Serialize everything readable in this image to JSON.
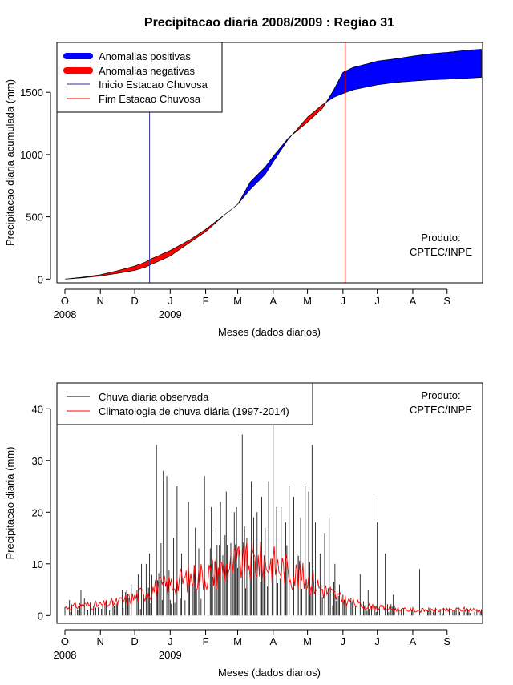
{
  "title": "Precipitacao diaria 2008/2009 : Regiao 31",
  "colors": {
    "positive": "#0000ff",
    "negative": "#ff0000",
    "observed": "#000000",
    "climatology": "#ff0000",
    "onset": "#3030a0",
    "end": "#ff0000"
  },
  "chart_data": [
    {
      "type": "area",
      "name": "accumulated",
      "xlabel": "Meses (dados diarios)",
      "ylabel": "Precipitacao diaria acumulada (mm)",
      "xlim_days": [
        -7,
        365
      ],
      "ylim": [
        -30,
        1900
      ],
      "yticks": [
        0,
        500,
        1000,
        1500
      ],
      "month_labels": [
        "O",
        "N",
        "D",
        "J",
        "F",
        "M",
        "A",
        "M",
        "J",
        "J",
        "A",
        "S"
      ],
      "month_days": [
        0,
        31,
        61,
        92,
        123,
        151,
        182,
        212,
        243,
        273,
        304,
        334
      ],
      "year_labels": [
        {
          "day": 0,
          "label": "2008"
        },
        {
          "day": 92,
          "label": "2009"
        }
      ],
      "onset_day": 74,
      "end_day": 245,
      "observed_curve": {
        "day": [
          0,
          15,
          31,
          45,
          61,
          70,
          76,
          92,
          110,
          123,
          140,
          151,
          162,
          175,
          182,
          195,
          212,
          225,
          235,
          243,
          252,
          265,
          273,
          290,
          304,
          320,
          334,
          355,
          364
        ],
        "mm": [
          0,
          10,
          25,
          45,
          70,
          95,
          120,
          185,
          300,
          380,
          520,
          600,
          780,
          900,
          985,
          1130,
          1260,
          1370,
          1520,
          1660,
          1700,
          1730,
          1750,
          1770,
          1790,
          1810,
          1820,
          1840,
          1845
        ]
      },
      "climatology_curve": {
        "day": [
          0,
          15,
          31,
          45,
          61,
          70,
          76,
          92,
          110,
          123,
          140,
          151,
          162,
          175,
          182,
          195,
          212,
          225,
          235,
          243,
          252,
          265,
          273,
          290,
          304,
          320,
          334,
          355,
          364
        ],
        "mm": [
          0,
          15,
          35,
          65,
          105,
          135,
          165,
          230,
          320,
          400,
          520,
          600,
          720,
          840,
          940,
          1120,
          1300,
          1400,
          1460,
          1490,
          1520,
          1545,
          1560,
          1580,
          1590,
          1600,
          1605,
          1615,
          1620
        ]
      },
      "legend": [
        "Anomalias positivas",
        "Anomalias negativas",
        "Inicio Estacao Chuvosa",
        "Fim Estacao Chuvosa"
      ],
      "annotation": [
        "Produto:",
        "CPTEC/INPE"
      ]
    },
    {
      "type": "bar",
      "name": "daily",
      "xlabel": "Meses (dados diarios)",
      "ylabel": "Precipitacao diaria (mm)",
      "xlim_days": [
        -7,
        365
      ],
      "ylim": [
        -1.5,
        45
      ],
      "yticks": [
        0,
        10,
        20,
        30,
        40
      ],
      "month_labels": [
        "O",
        "N",
        "D",
        "J",
        "F",
        "M",
        "A",
        "M",
        "J",
        "J",
        "A",
        "S"
      ],
      "month_days": [
        0,
        31,
        61,
        92,
        123,
        151,
        182,
        212,
        243,
        273,
        304,
        334
      ],
      "year_labels": [
        {
          "day": 0,
          "label": "2008"
        },
        {
          "day": 92,
          "label": "2009"
        }
      ],
      "observed_peaks": [
        {
          "day": 4,
          "mm": 3
        },
        {
          "day": 14,
          "mm": 5
        },
        {
          "day": 50,
          "mm": 5
        },
        {
          "day": 58,
          "mm": 6
        },
        {
          "day": 64,
          "mm": 8
        },
        {
          "day": 67,
          "mm": 10
        },
        {
          "day": 71,
          "mm": 10
        },
        {
          "day": 74,
          "mm": 12
        },
        {
          "day": 80,
          "mm": 33
        },
        {
          "day": 84,
          "mm": 14
        },
        {
          "day": 86,
          "mm": 28
        },
        {
          "day": 89,
          "mm": 27
        },
        {
          "day": 95,
          "mm": 15
        },
        {
          "day": 98,
          "mm": 25
        },
        {
          "day": 102,
          "mm": 12
        },
        {
          "day": 108,
          "mm": 22
        },
        {
          "day": 114,
          "mm": 17
        },
        {
          "day": 117,
          "mm": 13
        },
        {
          "day": 122,
          "mm": 27
        },
        {
          "day": 128,
          "mm": 21
        },
        {
          "day": 132,
          "mm": 17
        },
        {
          "day": 136,
          "mm": 22
        },
        {
          "day": 141,
          "mm": 24
        },
        {
          "day": 145,
          "mm": 14
        },
        {
          "day": 148,
          "mm": 20
        },
        {
          "day": 150,
          "mm": 21
        },
        {
          "day": 153,
          "mm": 23
        },
        {
          "day": 155,
          "mm": 35
        },
        {
          "day": 159,
          "mm": 15
        },
        {
          "day": 163,
          "mm": 26
        },
        {
          "day": 165,
          "mm": 19
        },
        {
          "day": 168,
          "mm": 20
        },
        {
          "day": 172,
          "mm": 23
        },
        {
          "day": 175,
          "mm": 17
        },
        {
          "day": 178,
          "mm": 26
        },
        {
          "day": 182,
          "mm": 37
        },
        {
          "day": 185,
          "mm": 21
        },
        {
          "day": 189,
          "mm": 21
        },
        {
          "day": 193,
          "mm": 18
        },
        {
          "day": 196,
          "mm": 25
        },
        {
          "day": 200,
          "mm": 23
        },
        {
          "day": 203,
          "mm": 12
        },
        {
          "day": 206,
          "mm": 19
        },
        {
          "day": 210,
          "mm": 25
        },
        {
          "day": 213,
          "mm": 24
        },
        {
          "day": 216,
          "mm": 33
        },
        {
          "day": 219,
          "mm": 18
        },
        {
          "day": 223,
          "mm": 12
        },
        {
          "day": 227,
          "mm": 16
        },
        {
          "day": 231,
          "mm": 19
        },
        {
          "day": 236,
          "mm": 10
        },
        {
          "day": 240,
          "mm": 6
        },
        {
          "day": 245,
          "mm": 4
        },
        {
          "day": 258,
          "mm": 8
        },
        {
          "day": 265,
          "mm": 5
        },
        {
          "day": 270,
          "mm": 23
        },
        {
          "day": 273,
          "mm": 18
        },
        {
          "day": 280,
          "mm": 12
        },
        {
          "day": 287,
          "mm": 4
        },
        {
          "day": 310,
          "mm": 9
        }
      ],
      "climatology": {
        "day": [
          0,
          15,
          31,
          45,
          61,
          75,
          92,
          105,
          123,
          137,
          151,
          165,
          182,
          196,
          212,
          226,
          243,
          258,
          273,
          290,
          304,
          320,
          334,
          350,
          364
        ],
        "mm": [
          1.5,
          2.0,
          2.0,
          2.5,
          3.5,
          5.0,
          6.0,
          7.0,
          8.0,
          9.0,
          10.0,
          10.5,
          10.0,
          8.5,
          7.0,
          5.0,
          3.0,
          2.0,
          1.5,
          1.2,
          1.0,
          1.0,
          1.0,
          1.2,
          1.0
        ]
      },
      "legend": [
        "Chuva diaria observada",
        "Climatologia de chuva diária (1997-2014)"
      ],
      "annotation": [
        "Produto:",
        "CPTEC/INPE"
      ]
    }
  ]
}
